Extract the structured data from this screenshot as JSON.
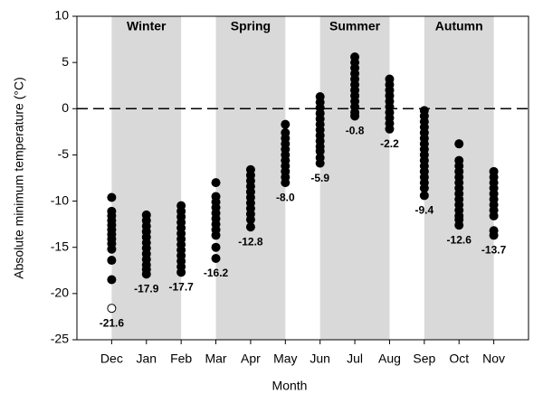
{
  "chart_data": {
    "type": "strip",
    "ylabel": "Absolute minimum temperature (°C)",
    "xlabel": "Month",
    "categories": [
      "Dec",
      "Jan",
      "Feb",
      "Mar",
      "Apr",
      "May",
      "Jun",
      "Jul",
      "Aug",
      "Sep",
      "Oct",
      "Nov"
    ],
    "strips": [
      {
        "values": [
          -9.6,
          -11.1,
          -11.6,
          -12.1,
          -12.6,
          -13.1,
          -13.6,
          -14.1,
          -14.6,
          -15.2,
          -16.4,
          -18.5
        ],
        "hollow": [
          -21.6
        ]
      },
      {
        "values": [
          -11.5,
          -12.1,
          -12.7,
          -13.3,
          -13.9,
          -14.5,
          -15.1,
          -15.7,
          -16.3,
          -16.9,
          -17.4,
          -17.9
        ]
      },
      {
        "values": [
          -10.5,
          -11.1,
          -11.7,
          -12.3,
          -12.9,
          -13.5,
          -14.1,
          -14.7,
          -15.3,
          -15.9,
          -16.5,
          -17.1,
          -17.7
        ]
      },
      {
        "values": [
          -8.0,
          -9.5,
          -10.1,
          -10.7,
          -11.3,
          -11.9,
          -12.5,
          -13.1,
          -13.7,
          -15.0,
          -16.2
        ]
      },
      {
        "values": [
          -6.6,
          -7.2,
          -7.8,
          -8.4,
          -9.0,
          -9.6,
          -10.2,
          -10.8,
          -11.4,
          -12.0,
          -12.8
        ]
      },
      {
        "values": [
          -1.7,
          -2.6,
          -3.2,
          -3.8,
          -4.4,
          -5.0,
          -5.6,
          -6.2,
          -6.8,
          -7.4,
          -8.0
        ]
      },
      {
        "values": [
          1.3,
          0.7,
          0.1,
          -0.5,
          -1.1,
          -1.7,
          -2.3,
          -2.9,
          -3.5,
          -4.1,
          -4.6,
          -5.3,
          -5.9
        ]
      },
      {
        "values": [
          5.6,
          5.0,
          4.4,
          3.8,
          3.2,
          2.6,
          2.0,
          1.4,
          0.8,
          0.2,
          -0.4,
          -0.8
        ]
      },
      {
        "values": [
          3.2,
          2.6,
          2.0,
          1.4,
          0.8,
          0.2,
          -0.4,
          -1.0,
          -1.6,
          -2.2
        ]
      },
      {
        "values": [
          -0.2,
          -0.8,
          -1.4,
          -2.0,
          -2.6,
          -3.2,
          -3.8,
          -4.4,
          -5.0,
          -5.6,
          -6.2,
          -6.8,
          -7.4,
          -8.0,
          -8.6,
          -9.4
        ]
      },
      {
        "values": [
          -3.8,
          -5.6,
          -6.2,
          -6.8,
          -7.4,
          -8.0,
          -8.6,
          -9.2,
          -9.8,
          -10.4,
          -11.0,
          -11.6,
          -12.0,
          -12.6
        ]
      },
      {
        "values": [
          -6.8,
          -7.4,
          -8.0,
          -8.6,
          -9.2,
          -9.8,
          -10.4,
          -11.0,
          -11.6,
          -13.2,
          -13.7
        ]
      }
    ],
    "value_labels": [
      "-21.6",
      "-17.9",
      "-17.7",
      "-16.2",
      "-12.8",
      "-8.0",
      "-5.9",
      "-0.8",
      "-2.2",
      "-9.4",
      "-12.6",
      "-13.7"
    ],
    "seasons": [
      {
        "name": "Winter",
        "start": "Dec",
        "end": "Feb"
      },
      {
        "name": "Spring",
        "start": "Mar",
        "end": "May"
      },
      {
        "name": "Summer",
        "start": "Jun",
        "end": "Aug"
      },
      {
        "name": "Autumn",
        "start": "Sep",
        "end": "Nov"
      }
    ],
    "season_color": "#d9d9d9",
    "color": "#000000",
    "reference_line": 0,
    "ylim": [
      -25,
      10
    ],
    "yticks": [
      -25,
      -20,
      -15,
      -10,
      -5,
      0,
      5,
      10
    ]
  }
}
